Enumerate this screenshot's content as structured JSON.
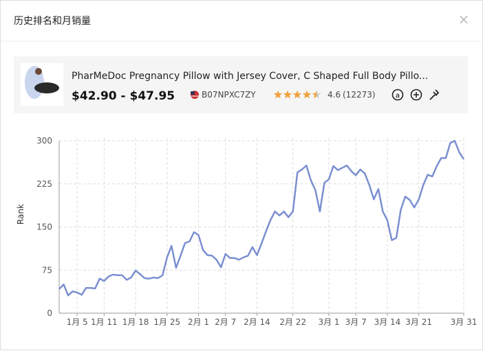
{
  "header": {
    "title": "历史排名和月销量",
    "close": "×"
  },
  "product": {
    "title": "PharMeDoc Pregnancy Pillow with Jersey Cover, C Shaped Full Body Pillo...",
    "price": "$42.90 - $47.95",
    "asin": "B07NPXC7ZY",
    "rating": 4.6,
    "reviews": "(12273)"
  },
  "chart_data": {
    "type": "line",
    "y_label": "Rank",
    "color": "#7b8fd0",
    "grid": true,
    "categories": [
      null,
      null,
      null,
      null,
      "1月 5",
      null,
      null,
      null,
      null,
      null,
      "1月 11",
      null,
      null,
      null,
      null,
      null,
      null,
      "1月 18",
      null,
      null,
      null,
      null,
      null,
      null,
      "1月 25",
      null,
      null,
      null,
      null,
      null,
      null,
      "2月 1",
      null,
      null,
      null,
      null,
      null,
      "2月 7",
      null,
      null,
      null,
      null,
      null,
      null,
      "2月 14",
      null,
      null,
      null,
      null,
      null,
      null,
      null,
      "2月 22",
      null,
      null,
      null,
      null,
      null,
      null,
      null,
      "3月 1",
      null,
      null,
      null,
      null,
      null,
      "3月 7",
      null,
      null,
      null,
      null,
      null,
      null,
      "3月 14",
      null,
      null,
      null,
      null,
      null,
      null,
      "3月 21",
      null,
      null,
      null,
      null,
      null,
      null,
      null,
      null,
      null,
      "3月 31"
    ],
    "values": [
      42,
      50,
      31,
      38,
      36,
      32,
      44,
      44,
      43,
      60,
      56,
      64,
      67,
      66,
      66,
      58,
      62,
      74,
      68,
      61,
      60,
      62,
      61,
      66,
      97,
      117,
      79,
      100,
      122,
      125,
      141,
      136,
      110,
      101,
      100,
      93,
      80,
      103,
      96,
      96,
      93,
      97,
      100,
      115,
      101,
      121,
      142,
      162,
      177,
      170,
      177,
      167,
      177,
      245,
      250,
      257,
      231,
      214,
      177,
      227,
      233,
      256,
      249,
      253,
      257,
      247,
      240,
      250,
      243,
      223,
      198,
      216,
      177,
      162,
      127,
      131,
      180,
      203,
      197,
      184,
      198,
      223,
      241,
      238,
      256,
      270,
      270,
      296,
      300,
      280,
      268
    ],
    "ylim": [
      0,
      300
    ],
    "yticks": [
      0,
      75,
      150,
      225,
      300
    ]
  }
}
